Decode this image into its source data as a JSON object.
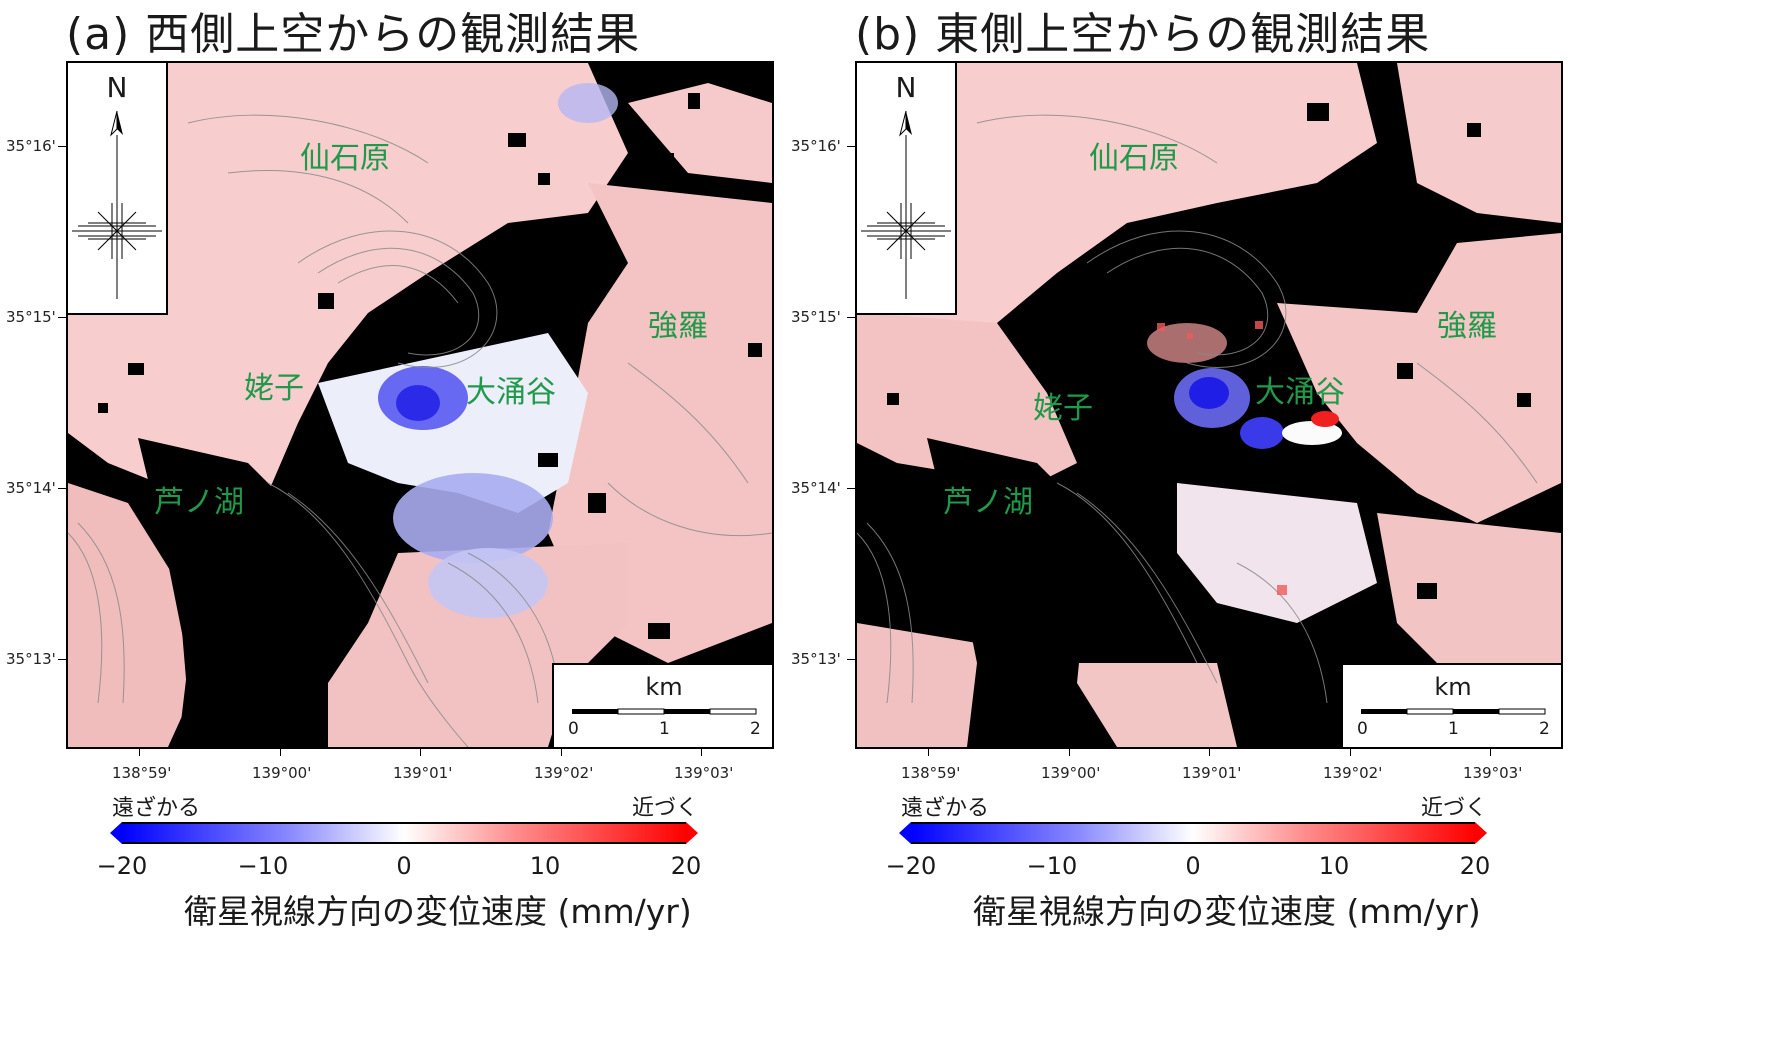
{
  "panels": [
    {
      "title": "(a) 西側上空からの観測結果",
      "places": [
        "仙石原",
        "強羅",
        "姥子",
        "大涌谷",
        "芦ノ湖"
      ],
      "variant": "west"
    },
    {
      "title": "(b) 東側上空からの観測結果",
      "places": [
        "仙石原",
        "強羅",
        "姥子",
        "大涌谷",
        "芦ノ湖"
      ],
      "variant": "east"
    }
  ],
  "axes": {
    "lat_labels": [
      "35°16'",
      "35°15'",
      "35°14'",
      "35°13'"
    ],
    "lon_labels": [
      "138°59'",
      "139°00'",
      "139°01'",
      "139°02'",
      "139°03'"
    ]
  },
  "compass": {
    "north_label": "N",
    "icon": "compass-rose-icon"
  },
  "scalebar": {
    "unit": "km",
    "ticks": [
      "0",
      "1",
      "2"
    ]
  },
  "colorbar": {
    "left_label": "遠ざかる",
    "right_label": "近づく",
    "ticks": [
      "−20",
      "−10",
      "0",
      "10",
      "20"
    ],
    "title": "衛星視線方向の変位速度 (mm/yr)",
    "colors": {
      "min": "#0000ff",
      "mid": "#ffffff",
      "max": "#ff0000"
    }
  },
  "colors": {
    "place_label": "#1f9a4a",
    "no_data": "#000000",
    "pink": "#f6c9c9",
    "blue": "#3b3bf0"
  }
}
